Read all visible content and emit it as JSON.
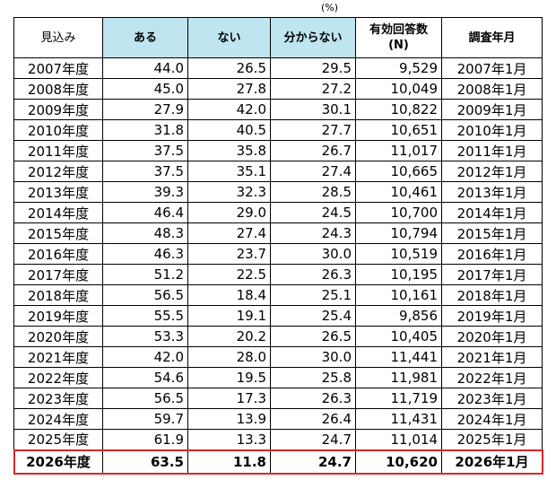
{
  "chart_data": {
    "type": "table",
    "unit": "(%)",
    "headers": [
      "見込み",
      "ある",
      "ない",
      "分からない",
      "有効回答数\n(N)",
      "調査年月"
    ],
    "rows": [
      [
        "2007年度",
        "44.0",
        "26.5",
        "29.5",
        "9,529",
        "2007年1月"
      ],
      [
        "2008年度",
        "45.0",
        "27.8",
        "27.2",
        "10,049",
        "2008年1月"
      ],
      [
        "2009年度",
        "27.9",
        "42.0",
        "30.1",
        "10,822",
        "2009年1月"
      ],
      [
        "2010年度",
        "31.8",
        "40.5",
        "27.7",
        "10,651",
        "2010年1月"
      ],
      [
        "2011年度",
        "37.5",
        "35.8",
        "26.7",
        "11,017",
        "2011年1月"
      ],
      [
        "2012年度",
        "37.5",
        "35.1",
        "27.4",
        "10,665",
        "2012年1月"
      ],
      [
        "2013年度",
        "39.3",
        "32.3",
        "28.5",
        "10,461",
        "2013年1月"
      ],
      [
        "2014年度",
        "46.4",
        "29.0",
        "24.5",
        "10,700",
        "2014年1月"
      ],
      [
        "2015年度",
        "48.3",
        "27.4",
        "24.3",
        "10,794",
        "2015年1月"
      ],
      [
        "2016年度",
        "46.3",
        "23.7",
        "30.0",
        "10,519",
        "2016年1月"
      ],
      [
        "2017年度",
        "51.2",
        "22.5",
        "26.3",
        "10,195",
        "2017年1月"
      ],
      [
        "2018年度",
        "56.5",
        "18.4",
        "25.1",
        "10,161",
        "2018年1月"
      ],
      [
        "2019年度",
        "55.5",
        "19.1",
        "25.4",
        "9,856",
        "2019年1月"
      ],
      [
        "2020年度",
        "53.3",
        "20.2",
        "26.5",
        "10,405",
        "2020年1月"
      ],
      [
        "2021年度",
        "42.0",
        "28.0",
        "30.0",
        "11,441",
        "2021年1月"
      ],
      [
        "2022年度",
        "54.6",
        "19.5",
        "25.8",
        "11,981",
        "2022年1月"
      ],
      [
        "2023年度",
        "56.5",
        "17.3",
        "26.3",
        "11,719",
        "2023年1月"
      ],
      [
        "2024年度",
        "59.7",
        "13.9",
        "26.4",
        "11,431",
        "2024年1月"
      ],
      [
        "2025年度",
        "61.9",
        "13.3",
        "24.7",
        "11,014",
        "2025年1月"
      ],
      [
        "2026年度",
        "63.5",
        "11.8",
        "24.7",
        "10,620",
        "2026年1月"
      ]
    ],
    "highlight_row": 19,
    "header_highlight_color": "#bfe5f0",
    "highlight_border_color": "#d7262b"
  }
}
